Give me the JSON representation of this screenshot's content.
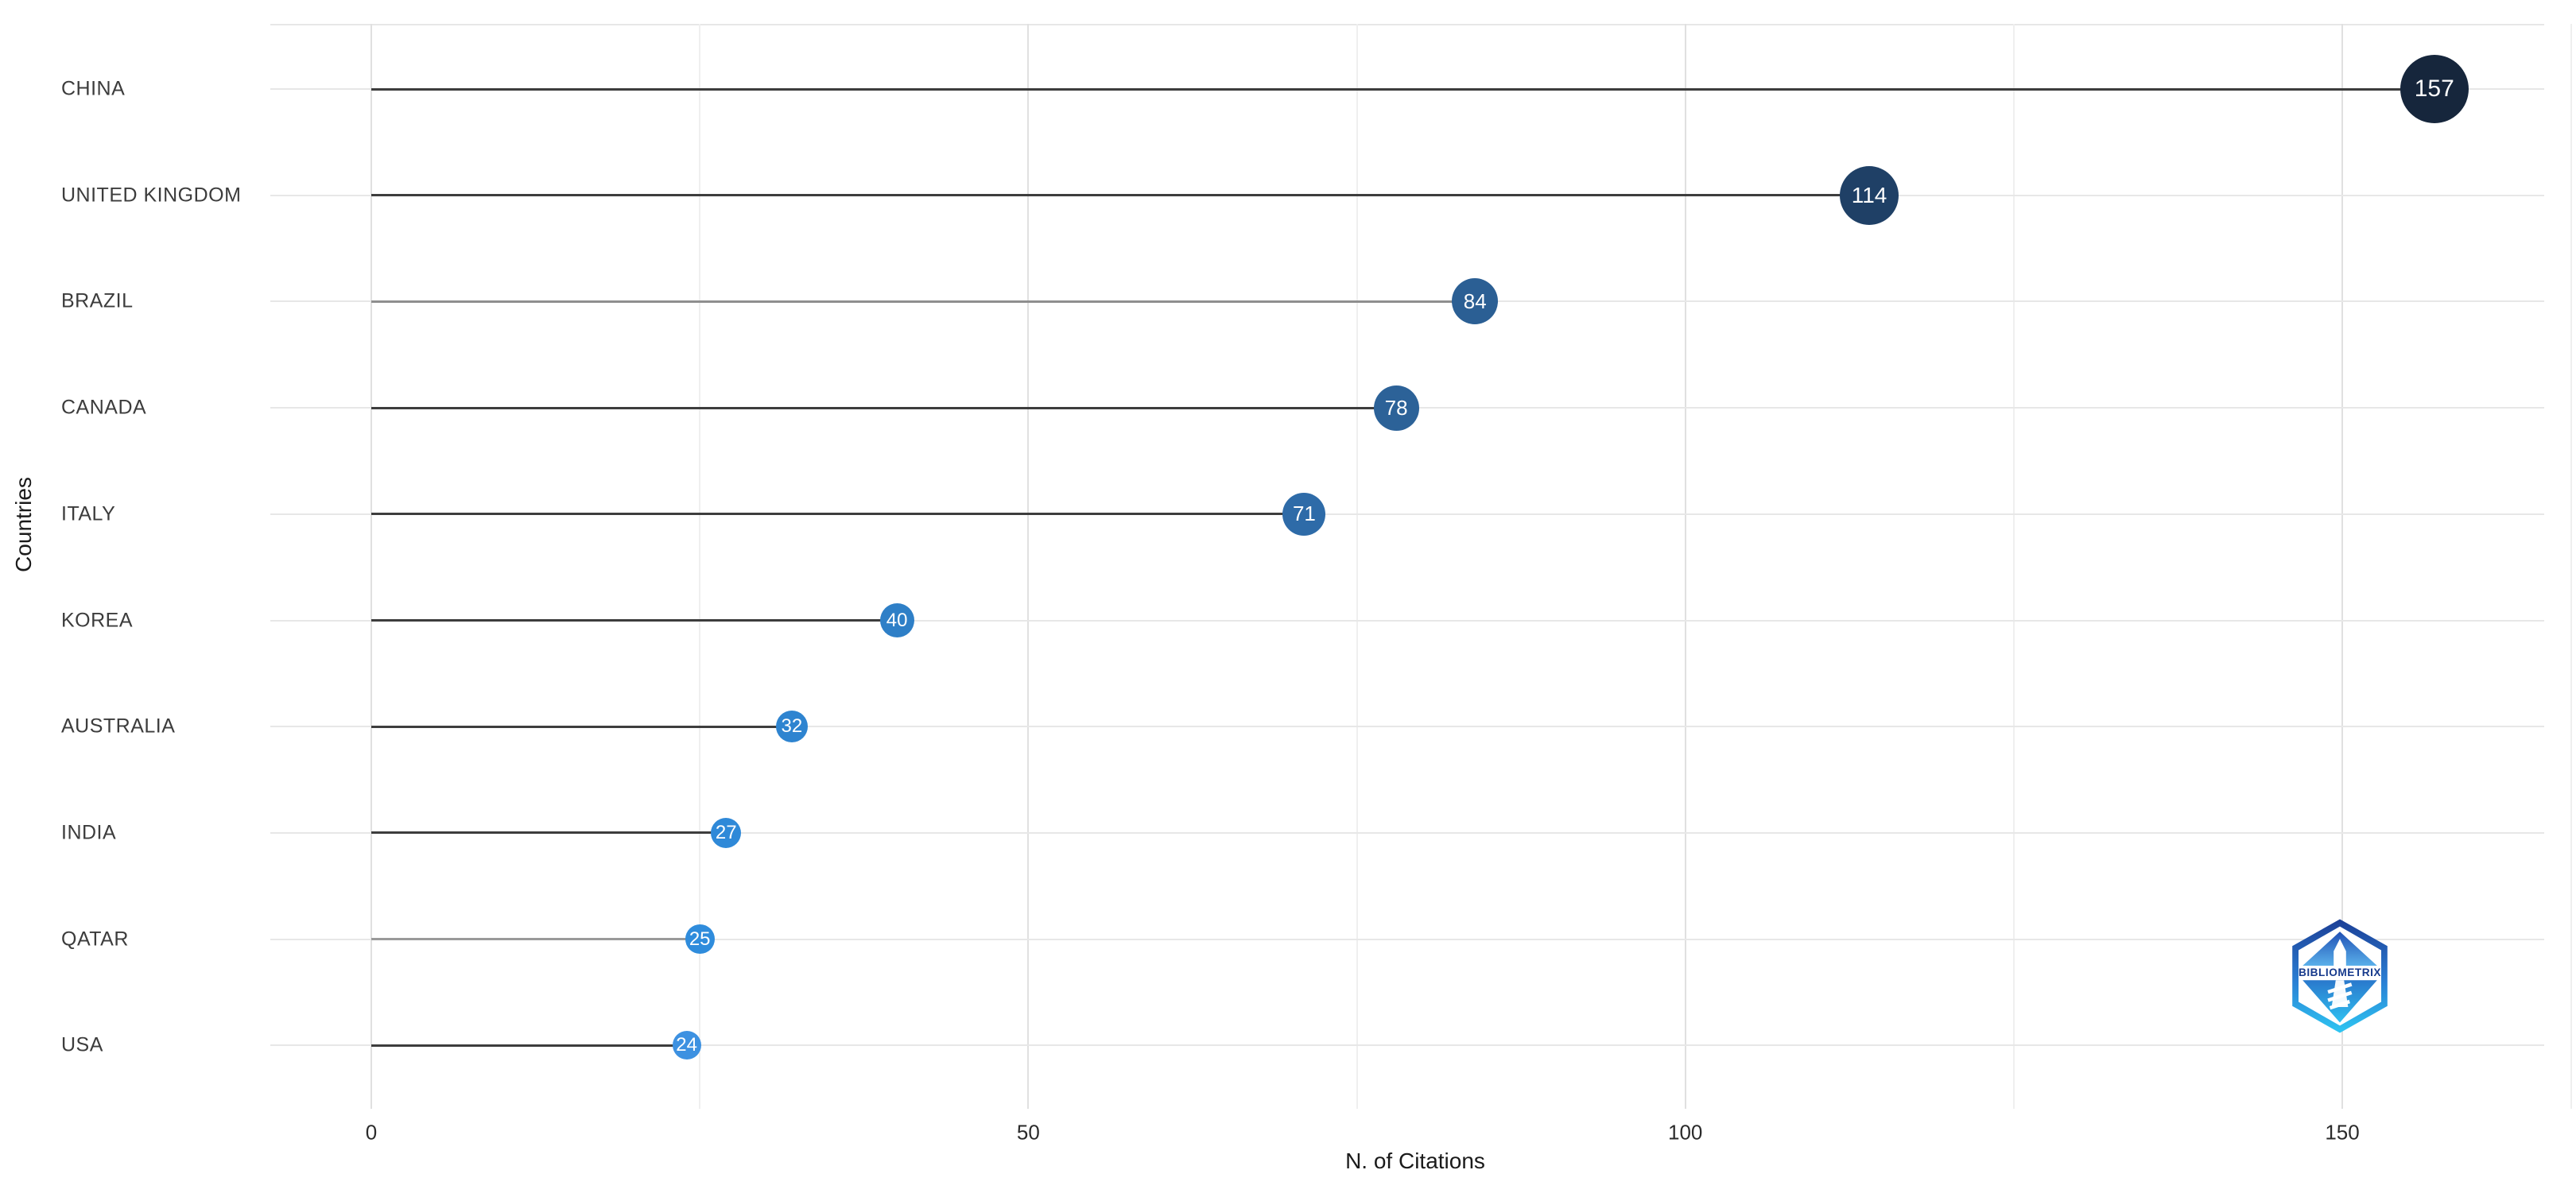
{
  "chart_data": {
    "type": "bar",
    "variant": "horizontal-lollipop",
    "title": "",
    "xlabel": "N. of Citations",
    "ylabel": "Countries",
    "categories": [
      "CHINA",
      "UNITED KINGDOM",
      "BRAZIL",
      "CANADA",
      "ITALY",
      "KOREA",
      "AUSTRALIA",
      "INDIA",
      "QATAR",
      "USA"
    ],
    "values": [
      157,
      114,
      84,
      78,
      71,
      40,
      32,
      27,
      25,
      24
    ],
    "point_colors": [
      "#16263c",
      "#1f4066",
      "#2b5f94",
      "#2c6298",
      "#2e6ba8",
      "#2e7fc7",
      "#2e84d0",
      "#2f89d8",
      "#2f8cdc",
      "#3d91e1"
    ],
    "point_sizes": [
      86,
      74,
      58,
      57,
      54,
      43,
      40,
      38,
      37,
      36
    ],
    "stem_colors": [
      "#3d3d3d",
      "#3d3d3d",
      "#8f8f8f",
      "#3d3d3d",
      "#3d3d3d",
      "#3d3d3d",
      "#3d3d3d",
      "#3d3d3d",
      "#9a9a9a",
      "#3d3d3d"
    ],
    "value_label_color": "#ffffff",
    "xlim": [
      0,
      167
    ],
    "x_ticks_major": [
      0,
      50,
      100,
      150
    ],
    "x_tick_labels": [
      "0",
      "50",
      "100",
      "150"
    ],
    "x_ticks_minor": [
      25,
      75,
      125
    ],
    "grid": true,
    "legend": "none",
    "background": "#ffffff",
    "gridline_color": "#e7e7e7"
  },
  "watermark": {
    "label": "BIBLIOMETRIX"
  }
}
